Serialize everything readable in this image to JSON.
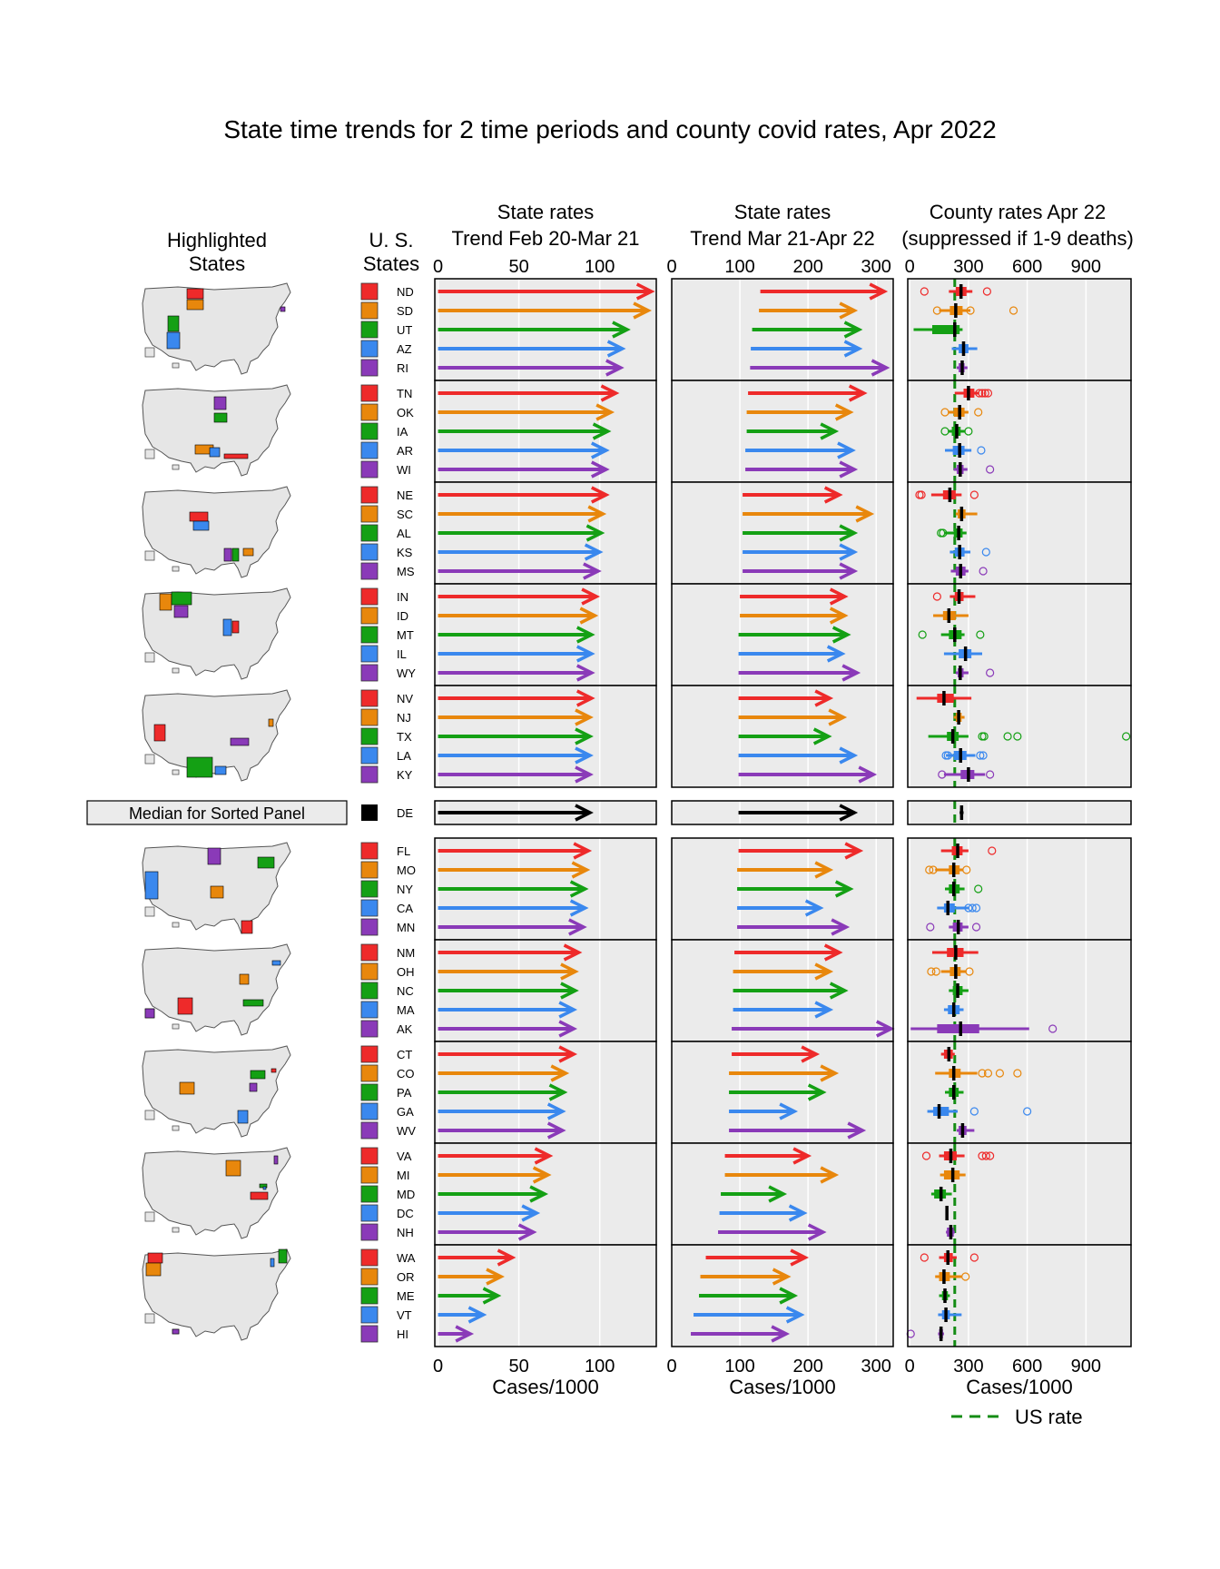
{
  "chart_data": {
    "type": "linked-micromap",
    "title": "State time trends for 2 time periods and county covid rates, Apr 2022",
    "columns": {
      "maps": {
        "header": [
          "Highlighted",
          "States"
        ]
      },
      "states": {
        "header": [
          "U. S.",
          "States"
        ]
      },
      "trend1": {
        "header": [
          "State rates",
          "Trend Feb 20-Mar 21"
        ],
        "xlabel": "Cases/1000",
        "ticks": [
          0,
          50,
          100
        ],
        "xlim": [
          -2,
          135
        ]
      },
      "trend2": {
        "header": [
          "State rates",
          "Trend Mar 21-Apr 22"
        ],
        "xlabel": "Cases/1000",
        "ticks": [
          0,
          100,
          200,
          300
        ],
        "xlim": [
          0,
          325
        ]
      },
      "county": {
        "header": [
          "County rates Apr 22",
          "(suppressed if 1-9 deaths)"
        ],
        "xlabel": "Cases/1000",
        "ticks": [
          0,
          300,
          600,
          900
        ],
        "tick_labels": [
          "0",
          "300",
          "600",
          "900"
        ],
        "xlim": [
          -10,
          1130
        ],
        "us_rate": 230,
        "us_rate_label": "US rate"
      }
    },
    "median_label": "Median for Sorted Panel",
    "colors": [
      "#ee2a2a",
      "#e8870c",
      "#14a014",
      "#3a88ee",
      "#8a3ab8"
    ],
    "rows": [
      {
        "state": "ND",
        "t1": [
          0,
          132
        ],
        "t2": [
          130,
          312
        ],
        "box": [
          200,
          235,
          262,
          290,
          320
        ],
        "outliers": [
          75,
          395
        ]
      },
      {
        "state": "SD",
        "t1": [
          0,
          130
        ],
        "t2": [
          128,
          268
        ],
        "box": [
          150,
          205,
          235,
          270,
          310
        ],
        "outliers": [
          140,
          310,
          530
        ]
      },
      {
        "state": "UT",
        "t1": [
          0,
          117
        ],
        "t2": [
          118,
          275
        ],
        "box": [
          20,
          115,
          230,
          255,
          270
        ],
        "outliers": []
      },
      {
        "state": "AZ",
        "t1": [
          0,
          114
        ],
        "t2": [
          116,
          275
        ],
        "box": [
          215,
          250,
          275,
          300,
          345
        ],
        "outliers": []
      },
      {
        "state": "RI",
        "t1": [
          0,
          113
        ],
        "t2": [
          115,
          315
        ],
        "box": [
          240,
          250,
          268,
          280,
          295
        ],
        "outliers": []
      },
      {
        "state": "TN",
        "t1": [
          0,
          110
        ],
        "t2": [
          112,
          282
        ],
        "box": [
          230,
          275,
          300,
          330,
          355
        ],
        "outliers": [
          355,
          370,
          385,
          400
        ]
      },
      {
        "state": "OK",
        "t1": [
          0,
          107
        ],
        "t2": [
          110,
          262
        ],
        "box": [
          195,
          225,
          255,
          280,
          300
        ],
        "outliers": [
          180,
          350
        ]
      },
      {
        "state": "IA",
        "t1": [
          0,
          105
        ],
        "t2": [
          110,
          240
        ],
        "box": [
          195,
          215,
          240,
          260,
          285
        ],
        "outliers": [
          180,
          300
        ]
      },
      {
        "state": "AR",
        "t1": [
          0,
          104
        ],
        "t2": [
          108,
          265
        ],
        "box": [
          180,
          220,
          255,
          280,
          315
        ],
        "outliers": [
          365
        ]
      },
      {
        "state": "WI",
        "t1": [
          0,
          104
        ],
        "t2": [
          108,
          268
        ],
        "box": [
          225,
          240,
          258,
          275,
          295
        ],
        "outliers": [
          410
        ]
      },
      {
        "state": "NE",
        "t1": [
          0,
          104
        ],
        "t2": [
          104,
          246
        ],
        "box": [
          110,
          170,
          205,
          235,
          265
        ],
        "outliers": [
          50,
          60,
          330
        ]
      },
      {
        "state": "SC",
        "t1": [
          0,
          102
        ],
        "t2": [
          104,
          292
        ],
        "box": [
          235,
          245,
          265,
          285,
          345
        ],
        "outliers": []
      },
      {
        "state": "AL",
        "t1": [
          0,
          101
        ],
        "t2": [
          104,
          268
        ],
        "box": [
          180,
          225,
          250,
          270,
          290
        ],
        "outliers": [
          160,
          170
        ]
      },
      {
        "state": "KS",
        "t1": [
          0,
          100
        ],
        "t2": [
          104,
          268
        ],
        "box": [
          205,
          230,
          255,
          280,
          310
        ],
        "outliers": [
          390
        ]
      },
      {
        "state": "MS",
        "t1": [
          0,
          99
        ],
        "t2": [
          104,
          268
        ],
        "box": [
          210,
          235,
          260,
          285,
          300
        ],
        "outliers": [
          375
        ]
      },
      {
        "state": "IN",
        "t1": [
          0,
          98
        ],
        "t2": [
          100,
          254
        ],
        "box": [
          205,
          230,
          252,
          275,
          335
        ],
        "outliers": [
          140
        ]
      },
      {
        "state": "ID",
        "t1": [
          0,
          97
        ],
        "t2": [
          100,
          254
        ],
        "box": [
          120,
          170,
          200,
          235,
          300
        ],
        "outliers": []
      },
      {
        "state": "MT",
        "t1": [
          0,
          95
        ],
        "t2": [
          98,
          258
        ],
        "box": [
          160,
          200,
          230,
          265,
          280
        ],
        "outliers": [
          65,
          360
        ]
      },
      {
        "state": "IL",
        "t1": [
          0,
          95
        ],
        "t2": [
          98,
          250
        ],
        "box": [
          175,
          250,
          285,
          315,
          370
        ],
        "outliers": []
      },
      {
        "state": "WY",
        "t1": [
          0,
          95
        ],
        "t2": [
          98,
          272
        ],
        "box": [
          235,
          245,
          258,
          275,
          300
        ],
        "outliers": [
          410
        ]
      },
      {
        "state": "NV",
        "t1": [
          0,
          95
        ],
        "t2": [
          98,
          232
        ],
        "box": [
          35,
          140,
          175,
          225,
          315
        ],
        "outliers": []
      },
      {
        "state": "NJ",
        "t1": [
          0,
          94
        ],
        "t2": [
          98,
          252
        ],
        "box": [
          225,
          235,
          250,
          265,
          280
        ],
        "outliers": []
      },
      {
        "state": "TX",
        "t1": [
          0,
          94
        ],
        "t2": [
          98,
          230
        ],
        "box": [
          95,
          190,
          220,
          250,
          300
        ],
        "outliers": [
          370,
          380,
          500,
          550,
          1105
        ]
      },
      {
        "state": "LA",
        "t1": [
          0,
          94
        ],
        "t2": [
          98,
          268
        ],
        "box": [
          185,
          225,
          260,
          290,
          335
        ],
        "outliers": [
          185,
          195,
          360,
          375
        ]
      },
      {
        "state": "KY",
        "t1": [
          0,
          94
        ],
        "t2": [
          98,
          296
        ],
        "box": [
          175,
          260,
          300,
          330,
          385
        ],
        "outliers": [
          165,
          410
        ]
      },
      {
        "state": "FL",
        "t1": [
          0,
          93
        ],
        "t2": [
          98,
          276
        ],
        "box": [
          160,
          215,
          245,
          270,
          300
        ],
        "outliers": [
          420
        ]
      },
      {
        "state": "MO",
        "t1": [
          0,
          92
        ],
        "t2": [
          96,
          232
        ],
        "box": [
          130,
          200,
          225,
          255,
          275
        ],
        "outliers": [
          100,
          120,
          290
        ]
      },
      {
        "state": "NY",
        "t1": [
          0,
          91
        ],
        "t2": [
          96,
          262
        ],
        "box": [
          180,
          200,
          225,
          255,
          280
        ],
        "outliers": [
          350
        ]
      },
      {
        "state": "CA",
        "t1": [
          0,
          91
        ],
        "t2": [
          96,
          218
        ],
        "box": [
          140,
          175,
          195,
          230,
          300
        ],
        "outliers": [
          300,
          320,
          340
        ]
      },
      {
        "state": "MN",
        "t1": [
          0,
          90
        ],
        "t2": [
          96,
          256
        ],
        "box": [
          200,
          220,
          248,
          270,
          300
        ],
        "outliers": [
          105,
          340
        ]
      },
      {
        "state": "NM",
        "t1": [
          0,
          87
        ],
        "t2": [
          92,
          246
        ],
        "box": [
          115,
          190,
          235,
          275,
          350
        ],
        "outliers": []
      },
      {
        "state": "OH",
        "t1": [
          0,
          85
        ],
        "t2": [
          90,
          232
        ],
        "box": [
          160,
          205,
          235,
          260,
          290
        ],
        "outliers": [
          110,
          135,
          305
        ]
      },
      {
        "state": "NC",
        "t1": [
          0,
          85
        ],
        "t2": [
          90,
          254
        ],
        "box": [
          200,
          220,
          245,
          270,
          300
        ],
        "outliers": []
      },
      {
        "state": "MA",
        "t1": [
          0,
          84
        ],
        "t2": [
          90,
          232
        ],
        "box": [
          175,
          195,
          225,
          255,
          275
        ],
        "outliers": []
      },
      {
        "state": "AK",
        "t1": [
          0,
          84
        ],
        "t2": [
          88,
          322
        ],
        "box": [
          5,
          140,
          260,
          355,
          610
        ],
        "outliers": [
          730
        ]
      },
      {
        "state": "CT",
        "t1": [
          0,
          84
        ],
        "t2": [
          88,
          212
        ],
        "box": [
          160,
          175,
          200,
          220,
          230
        ],
        "outliers": []
      },
      {
        "state": "CO",
        "t1": [
          0,
          79
        ],
        "t2": [
          84,
          240
        ],
        "box": [
          130,
          200,
          225,
          260,
          345
        ],
        "outliers": [
          370,
          400,
          460,
          550
        ]
      },
      {
        "state": "PA",
        "t1": [
          0,
          78
        ],
        "t2": [
          84,
          222
        ],
        "box": [
          180,
          200,
          225,
          250,
          275
        ],
        "outliers": []
      },
      {
        "state": "GA",
        "t1": [
          0,
          77
        ],
        "t2": [
          84,
          180
        ],
        "box": [
          90,
          120,
          150,
          200,
          245
        ],
        "outliers": [
          330,
          600
        ]
      },
      {
        "state": "WV",
        "t1": [
          0,
          77
        ],
        "t2": [
          84,
          280
        ],
        "box": [
          240,
          250,
          270,
          290,
          330
        ],
        "outliers": []
      },
      {
        "state": "VA",
        "t1": [
          0,
          69
        ],
        "t2": [
          78,
          200
        ],
        "box": [
          150,
          175,
          210,
          240,
          280
        ],
        "outliers": [
          85,
          370,
          390,
          410
        ]
      },
      {
        "state": "MI",
        "t1": [
          0,
          68
        ],
        "t2": [
          78,
          240
        ],
        "box": [
          155,
          175,
          220,
          255,
          285
        ],
        "outliers": []
      },
      {
        "state": "MD",
        "t1": [
          0,
          66
        ],
        "t2": [
          72,
          164
        ],
        "box": [
          110,
          125,
          160,
          185,
          215
        ],
        "outliers": []
      },
      {
        "state": "DC",
        "t1": [
          0,
          61
        ],
        "t2": [
          70,
          194
        ],
        "box": [
          190,
          190,
          190,
          190,
          190
        ],
        "outliers": []
      },
      {
        "state": "NH",
        "t1": [
          0,
          59
        ],
        "t2": [
          68,
          222
        ],
        "box": [
          185,
          190,
          210,
          225,
          230
        ],
        "outliers": []
      },
      {
        "state": "WA",
        "t1": [
          0,
          46
        ],
        "t2": [
          50,
          196
        ],
        "box": [
          150,
          175,
          195,
          220,
          240
        ],
        "outliers": [
          75,
          330
        ]
      },
      {
        "state": "OR",
        "t1": [
          0,
          39
        ],
        "t2": [
          42,
          170
        ],
        "box": [
          130,
          150,
          175,
          205,
          265
        ],
        "outliers": [
          285
        ]
      },
      {
        "state": "ME",
        "t1": [
          0,
          37
        ],
        "t2": [
          40,
          180
        ],
        "box": [
          150,
          165,
          180,
          195,
          205
        ],
        "outliers": []
      },
      {
        "state": "VT",
        "t1": [
          0,
          28
        ],
        "t2": [
          32,
          190
        ],
        "box": [
          145,
          165,
          185,
          205,
          265
        ],
        "outliers": []
      },
      {
        "state": "HI",
        "t1": [
          0,
          20
        ],
        "t2": [
          28,
          168
        ],
        "box": [
          145,
          150,
          160,
          170,
          175
        ],
        "outliers": [
          5
        ]
      }
    ],
    "median": {
      "state": "DE",
      "t1": [
        0,
        94
      ],
      "t2": [
        98,
        268
      ],
      "box": [
        255,
        258,
        265,
        272,
        275
      ],
      "outliers": []
    }
  }
}
